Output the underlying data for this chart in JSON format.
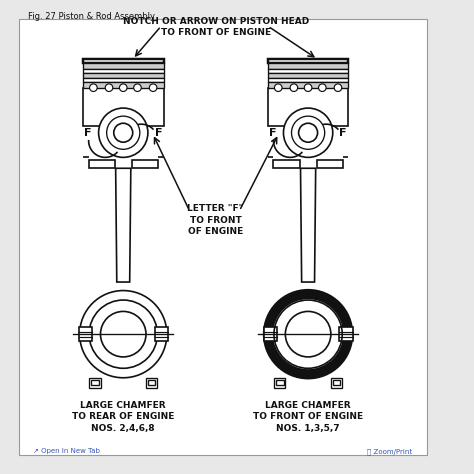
{
  "title": "Fig. 27 Piston & Rod Assembly",
  "bg_color": "#e8e8e8",
  "diagram_bg": "#ffffff",
  "line_color": "#111111",
  "label_top": "NOTCH OR ARROW ON PISTON HEAD\nTO FRONT OF ENGINE",
  "label_mid": "LETTER \"F\"\nTO FRONT\nOF ENGINE",
  "label_left1": "LARGE CHAMFER\nTO REAR OF ENGINE\nNOS. 2,4,6,8",
  "label_right1": "LARGE CHAMFER\nTO FRONT OF ENGINE\nNOS. 1,3,5,7",
  "footer_left": "↗ Open In New Tab",
  "footer_right": "🔍 Zoom/Print",
  "lcx": 0.26,
  "rcx": 0.65
}
